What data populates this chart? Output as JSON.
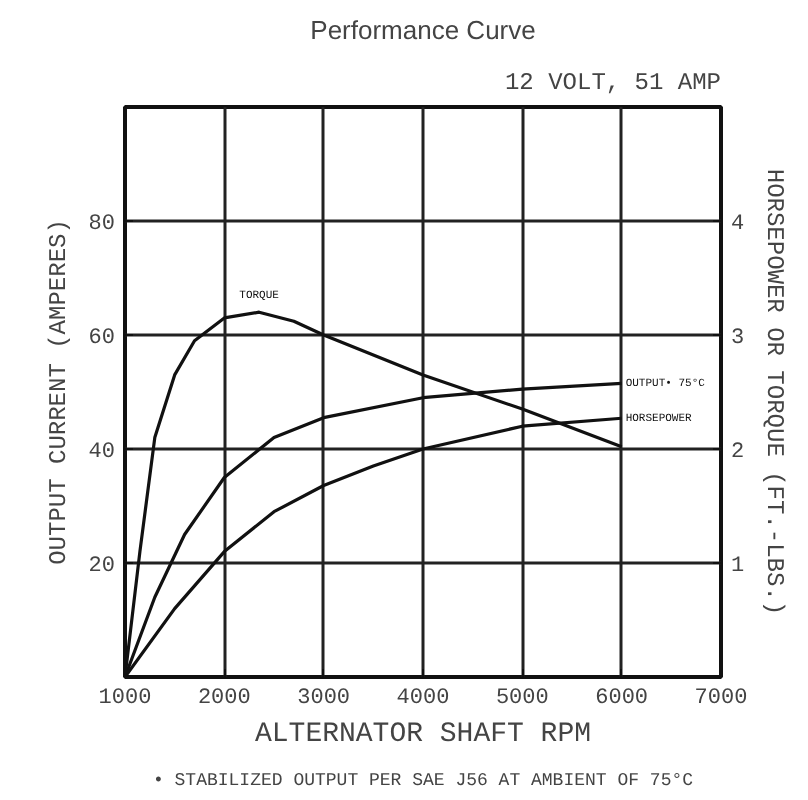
{
  "chart_data": {
    "type": "line",
    "title": "Performance Curve",
    "subtitle": "12 VOLT, 51 AMP",
    "xlabel": "ALTERNATOR SHAFT RPM",
    "ylabel": "OUTPUT CURRENT (AMPERES)",
    "y2label": "HORSEPOWER OR TORQUE (FT.-LBS.)",
    "annotations": [
      "• STABILIZED OUTPUT PER SAE J56 AT AMBIENT OF 75°C"
    ],
    "xlim": [
      1000,
      7000
    ],
    "xticks": [
      1000,
      2000,
      3000,
      4000,
      5000,
      6000,
      7000
    ],
    "ylim": [
      0,
      100
    ],
    "yticks": [
      20,
      40,
      60,
      80
    ],
    "y2lim": [
      0,
      5
    ],
    "y2ticks": [
      1,
      2,
      3,
      4
    ],
    "grid": true,
    "marker": "none",
    "line_style": "solid",
    "series": [
      {
        "name": "OUTPUT• 75°C",
        "color": "#111111",
        "x": [
          1000,
          1300,
          1600,
          2000,
          2500,
          3000,
          4000,
          5000,
          6000
        ],
        "values": [
          0,
          14,
          25,
          35,
          42,
          45.5,
          49,
          50.5,
          51.5
        ]
      },
      {
        "name": "HORSEPOWER",
        "color": "#111111",
        "axis": "y2",
        "x": [
          1000,
          1500,
          2000,
          2500,
          3000,
          3500,
          4000,
          5000,
          6000
        ],
        "values": [
          0,
          0.6,
          1.1,
          1.45,
          1.68,
          1.85,
          2.0,
          2.2,
          2.27
        ]
      },
      {
        "name": "TORQUE",
        "color": "#111111",
        "axis": "y2",
        "x": [
          1000,
          1150,
          1300,
          1500,
          1700,
          2000,
          2350,
          2700,
          3000,
          4000,
          5000,
          6000
        ],
        "values": [
          0,
          1.1,
          2.1,
          2.65,
          2.95,
          3.15,
          3.2,
          3.12,
          3.0,
          2.65,
          2.35,
          2.02
        ]
      }
    ]
  }
}
